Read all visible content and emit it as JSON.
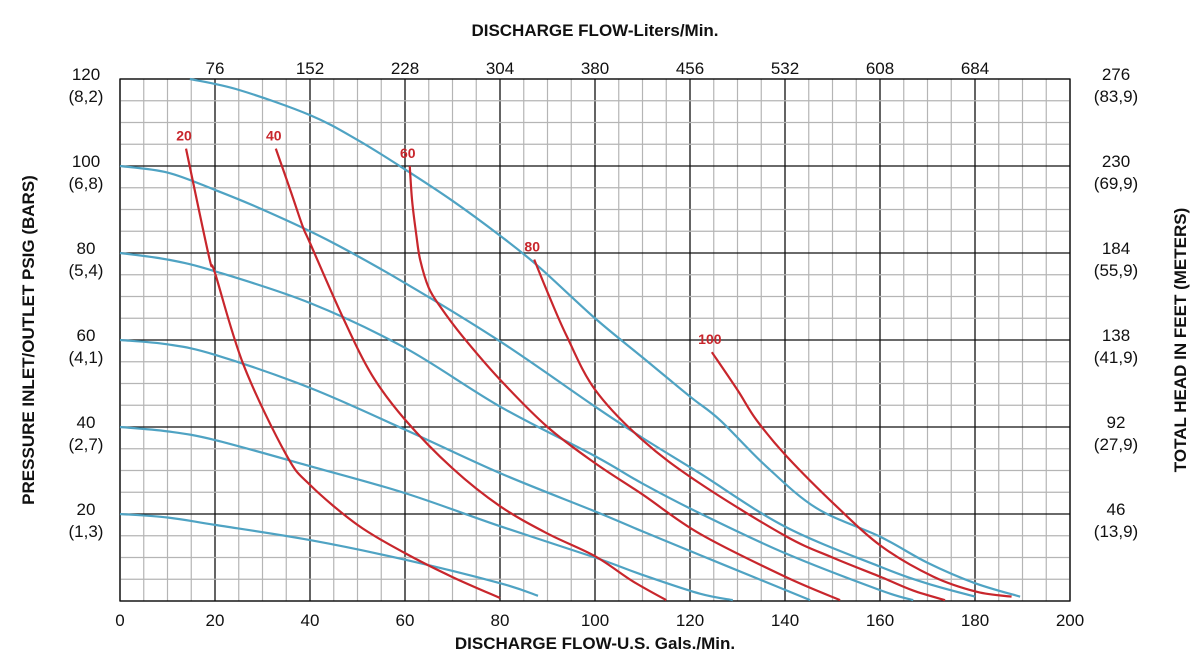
{
  "chart_data": {
    "type": "line",
    "xlabel": "DISCHARGE FLOW-U.S. Gals./Min.",
    "x2label": "DISCHARGE FLOW-Liters/Min.",
    "ylabel": "PRESSURE INLET/OUTLET PSIG (BARS)",
    "y2label": "TOTAL HEAD IN FEET (METERS)",
    "xlim": [
      0,
      200
    ],
    "ylim": [
      0,
      120
    ],
    "grid": true,
    "x_ticks": [
      "0",
      "20",
      "40",
      "60",
      "80",
      "100",
      "120",
      "140",
      "160",
      "180",
      "200"
    ],
    "x2_ticks": [
      {
        "x": 20,
        "label": "76"
      },
      {
        "x": 40,
        "label": "152"
      },
      {
        "x": 60,
        "label": "228"
      },
      {
        "x": 80,
        "label": "304"
      },
      {
        "x": 100,
        "label": "380"
      },
      {
        "x": 120,
        "label": "456"
      },
      {
        "x": 140,
        "label": "532"
      },
      {
        "x": 160,
        "label": "608"
      },
      {
        "x": 180,
        "label": "684"
      }
    ],
    "y_ticks": [
      {
        "y": 120,
        "label": "120",
        "sub": "(8,2)"
      },
      {
        "y": 100,
        "label": "100",
        "sub": "(6,8)"
      },
      {
        "y": 80,
        "label": "80",
        "sub": "(5,4)"
      },
      {
        "y": 60,
        "label": "60",
        "sub": "(4,1)"
      },
      {
        "y": 40,
        "label": "40",
        "sub": "(2,7)"
      },
      {
        "y": 20,
        "label": "20",
        "sub": "(1,3)"
      }
    ],
    "y2_ticks": [
      {
        "y": 120,
        "label": "276",
        "sub": "(83,9)"
      },
      {
        "y": 100,
        "label": "230",
        "sub": "(69,9)"
      },
      {
        "y": 80,
        "label": "184",
        "sub": "(55,9)"
      },
      {
        "y": 60,
        "label": "138",
        "sub": "(41,9)"
      },
      {
        "y": 40,
        "label": "92",
        "sub": "(27,9)"
      },
      {
        "y": 20,
        "label": "46",
        "sub": "(13,9)"
      }
    ],
    "colors": {
      "pressure": "#4fa3c3",
      "air": "#c8262c",
      "grid_major": "#111111",
      "grid_minor": "#b5b5b5"
    },
    "pressure_curves": [
      {
        "psi": 120,
        "points": [
          [
            14.7,
            120
          ],
          [
            25,
            117.5
          ],
          [
            40,
            111.7
          ],
          [
            50,
            106
          ],
          [
            59.6,
            99.5
          ],
          [
            70,
            92
          ],
          [
            80,
            84
          ],
          [
            88,
            77
          ],
          [
            100,
            65
          ],
          [
            110,
            56
          ],
          [
            120,
            47
          ],
          [
            126.3,
            41.6
          ],
          [
            136,
            31
          ],
          [
            146.7,
            21.3
          ],
          [
            160,
            14.8
          ],
          [
            170,
            8.8
          ],
          [
            180,
            4.1
          ],
          [
            189.5,
            1
          ]
        ]
      },
      {
        "psi": 100,
        "points": [
          [
            0,
            100
          ],
          [
            10,
            98.5
          ],
          [
            20,
            94.5
          ],
          [
            30,
            90
          ],
          [
            43.5,
            83.1
          ],
          [
            60,
            73.1
          ],
          [
            80,
            59.7
          ],
          [
            100,
            44.7
          ],
          [
            110,
            37.5
          ],
          [
            122,
            29.4
          ],
          [
            140,
            17.1
          ],
          [
            160,
            7.9
          ],
          [
            170,
            4
          ],
          [
            180,
            1
          ]
        ]
      },
      {
        "psi": 80,
        "points": [
          [
            0,
            80
          ],
          [
            10,
            78.5
          ],
          [
            20,
            75.8
          ],
          [
            40,
            68.5
          ],
          [
            60,
            58.2
          ],
          [
            80,
            44.7
          ],
          [
            100,
            33.3
          ],
          [
            110,
            27
          ],
          [
            122,
            20.2
          ],
          [
            140,
            11
          ],
          [
            160,
            2.5
          ],
          [
            167,
            0.2
          ]
        ]
      },
      {
        "psi": 60,
        "points": [
          [
            0,
            60
          ],
          [
            10,
            59
          ],
          [
            20,
            56.6
          ],
          [
            40,
            49
          ],
          [
            60,
            39.4
          ],
          [
            80,
            29.4
          ],
          [
            100,
            20.6
          ],
          [
            110,
            16
          ],
          [
            122,
            10.6
          ],
          [
            135,
            4.8
          ],
          [
            145.3,
            0.2
          ]
        ]
      },
      {
        "psi": 40,
        "points": [
          [
            0,
            40
          ],
          [
            10,
            39
          ],
          [
            20,
            37
          ],
          [
            40,
            31
          ],
          [
            60,
            24.8
          ],
          [
            80,
            17.2
          ],
          [
            100,
            10
          ],
          [
            110,
            6
          ],
          [
            122,
            1.7
          ],
          [
            129,
            0.2
          ]
        ]
      },
      {
        "psi": 20,
        "points": [
          [
            0,
            20
          ],
          [
            10,
            19.2
          ],
          [
            20,
            17.5
          ],
          [
            40,
            14
          ],
          [
            60,
            9.5
          ],
          [
            80,
            4.1
          ],
          [
            88,
            1.2
          ]
        ]
      }
    ],
    "air_curves": [
      {
        "label": "20",
        "points": [
          [
            13.9,
            104
          ],
          [
            15.3,
            96.7
          ],
          [
            18.9,
            78.4
          ],
          [
            20,
            75.4
          ],
          [
            26,
            54.3
          ],
          [
            35,
            33.6
          ],
          [
            40,
            26.7
          ],
          [
            50,
            17.5
          ],
          [
            60,
            11
          ],
          [
            70,
            5.5
          ],
          [
            80,
            0.7
          ]
        ]
      },
      {
        "label": "40",
        "points": [
          [
            32.8,
            104
          ],
          [
            36,
            94
          ],
          [
            38.5,
            86
          ],
          [
            40,
            82.3
          ],
          [
            47,
            65
          ],
          [
            53,
            52
          ],
          [
            60,
            41.7
          ],
          [
            70,
            30.5
          ],
          [
            80,
            21.8
          ],
          [
            90,
            15.5
          ],
          [
            100,
            10.3
          ],
          [
            108,
            4.5
          ],
          [
            115,
            0.2
          ]
        ]
      },
      {
        "label": "60",
        "points": [
          [
            61,
            100
          ],
          [
            61.5,
            92
          ],
          [
            62.4,
            84
          ],
          [
            63.2,
            78.4
          ],
          [
            65,
            72
          ],
          [
            67.4,
            67.7
          ],
          [
            72,
            61
          ],
          [
            80,
            50.9
          ],
          [
            90,
            40
          ],
          [
            100,
            31.7
          ],
          [
            110,
            24.5
          ],
          [
            122,
            15.5
          ],
          [
            140,
            5.6
          ],
          [
            151.6,
            0.2
          ]
        ]
      },
      {
        "label": "80",
        "points": [
          [
            87.2,
            78.5
          ],
          [
            90,
            71
          ],
          [
            94,
            61
          ],
          [
            100,
            48.6
          ],
          [
            110,
            37
          ],
          [
            122,
            27.1
          ],
          [
            140,
            15
          ],
          [
            150,
            10
          ],
          [
            160,
            5.6
          ],
          [
            167,
            2.4
          ],
          [
            173.7,
            0.2
          ]
        ]
      },
      {
        "label": "100",
        "points": [
          [
            124.6,
            57.2
          ],
          [
            130,
            48.5
          ],
          [
            134,
            41.6
          ],
          [
            140.4,
            33.2
          ],
          [
            151,
            21.6
          ],
          [
            160.4,
            12.5
          ],
          [
            171.2,
            5.6
          ],
          [
            180.4,
            2.1
          ],
          [
            187.7,
            1
          ]
        ]
      }
    ]
  }
}
